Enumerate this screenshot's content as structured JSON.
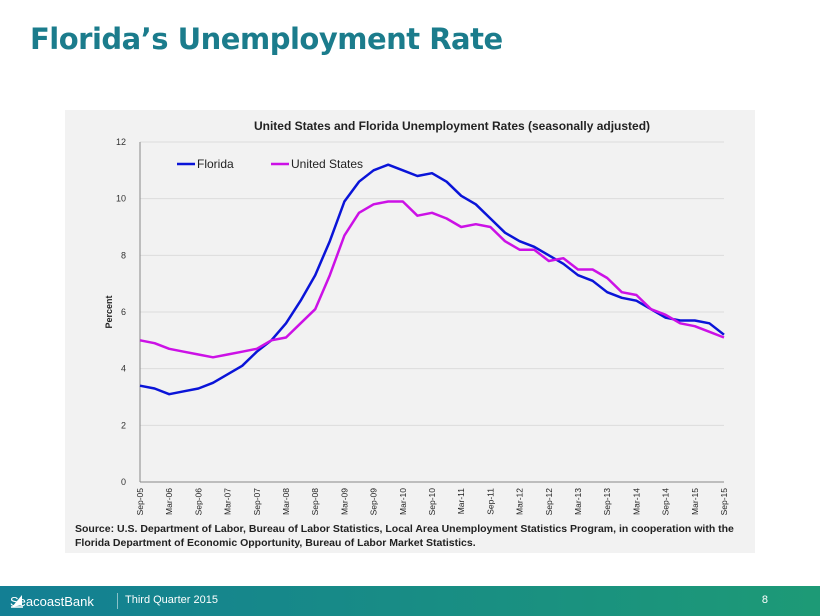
{
  "page_title": "Florida’s Unemployment Rate",
  "source": "Source:  U.S. Department of Labor, Bureau of Labor Statistics, Local Area Unemployment Statistics Program, in cooperation with the Florida Department of Economic Opportunity, Bureau of Labor Market Statistics.",
  "footer": {
    "brand": "SeacoastBank",
    "quarter": "Third Quarter 2015",
    "page_number": "8"
  },
  "chart_data": {
    "type": "line",
    "title": "United States and Florida Unemployment Rates (seasonally adjusted)",
    "xlabel": "",
    "ylabel": "Percent",
    "ylim": [
      0,
      12
    ],
    "yticks": [
      0,
      2,
      4,
      6,
      8,
      10,
      12
    ],
    "xtick_labels": [
      "Sep-05",
      "Mar-06",
      "Sep-06",
      "Mar-07",
      "Sep-07",
      "Mar-08",
      "Sep-08",
      "Mar-09",
      "Sep-09",
      "Mar-10",
      "Sep-10",
      "Mar-11",
      "Sep-11",
      "Mar-12",
      "Sep-12",
      "Mar-13",
      "Sep-13",
      "Mar-14",
      "Sep-14",
      "Mar-15",
      "Sep-15"
    ],
    "x_step": "quarterly from Sep-05",
    "legend": "top-left",
    "grid": true,
    "series": [
      {
        "name": "Florida",
        "color": "#0a14d8",
        "values": [
          3.4,
          3.3,
          3.1,
          3.2,
          3.3,
          3.5,
          3.8,
          4.1,
          4.6,
          5.0,
          5.6,
          6.4,
          7.3,
          8.5,
          9.9,
          10.6,
          11.0,
          11.2,
          11.0,
          10.8,
          10.9,
          10.6,
          10.1,
          9.8,
          9.3,
          8.8,
          8.5,
          8.3,
          8.0,
          7.7,
          7.3,
          7.1,
          6.7,
          6.5,
          6.4,
          6.1,
          5.8,
          5.7,
          5.7,
          5.6,
          5.2
        ]
      },
      {
        "name": "United States",
        "color": "#cc11e6",
        "values": [
          5.0,
          4.9,
          4.7,
          4.6,
          4.5,
          4.4,
          4.5,
          4.6,
          4.7,
          5.0,
          5.1,
          5.6,
          6.1,
          7.3,
          8.7,
          9.5,
          9.8,
          9.9,
          9.9,
          9.4,
          9.5,
          9.3,
          9.0,
          9.1,
          9.0,
          8.5,
          8.2,
          8.2,
          7.8,
          7.9,
          7.5,
          7.5,
          7.2,
          6.7,
          6.6,
          6.1,
          5.9,
          5.6,
          5.5,
          5.3,
          5.1
        ]
      }
    ]
  }
}
